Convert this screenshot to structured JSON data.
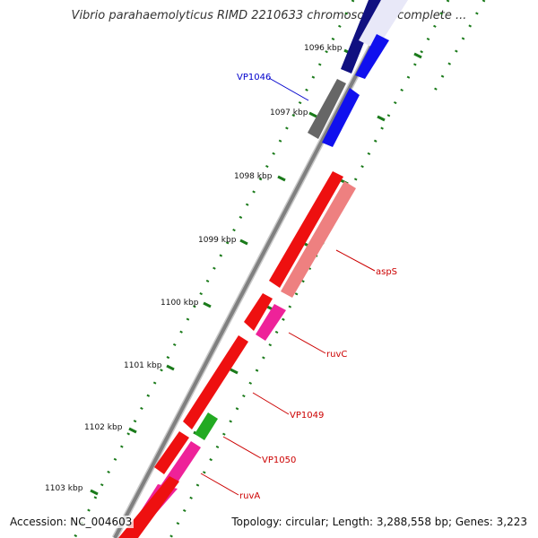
{
  "title": "Vibrio parahaemolyticus RIMD 2210633 chromosome I, complete ...",
  "accession_text": "Accession: NC_004603",
  "summary_text": "Topology: circular; Length: 3,288,558 bp; Genes: 3,223",
  "ruler_ticks": [
    "1096 kbp",
    "1097 kbp",
    "1098 kbp",
    "1099 kbp",
    "1100 kbp",
    "1101 kbp",
    "1102 kbp",
    "1103 kbp"
  ],
  "gene_labels": {
    "vp1046": "VP1046",
    "asps": "aspS",
    "ruvc": "ruvC",
    "vp1049": "VP1049",
    "vp1050": "VP1050",
    "ruva": "ruvA"
  },
  "colors": {
    "forward_strand_cds": "#1010ee",
    "reverse_strand_cds": "#ee1010",
    "gene_label_red": "#cc0000",
    "gene_label_blue": "#0000cc",
    "pink_feature": "#ee2299",
    "salmon_feature": "#ee8080",
    "green_feature": "#22aa22",
    "gray_feature": "#666666",
    "navy_feature": "#101080",
    "backbone": "#888888",
    "tick": "#1a7a1a"
  }
}
